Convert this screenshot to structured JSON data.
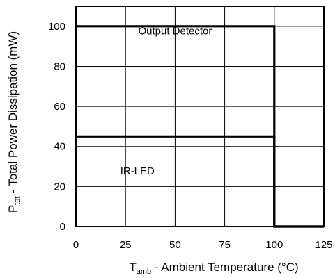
{
  "chart_data": {
    "type": "line",
    "title": "",
    "xlabel": {
      "main": "T",
      "sub": "amb",
      "rest": " - Ambient Temperature (°C)"
    },
    "ylabel": {
      "main": "P",
      "sub": "tot",
      "rest": " - Total Power Dissipation (mW)"
    },
    "xlim": [
      0,
      125
    ],
    "ylim": [
      0,
      110
    ],
    "xticks": [
      0,
      25,
      50,
      75,
      100,
      125
    ],
    "yticks": [
      0,
      20,
      40,
      60,
      80,
      100
    ],
    "grid": true,
    "series": [
      {
        "x": [
          0,
          100,
          100,
          125
        ],
        "y": [
          100,
          100,
          0,
          0
        ]
      },
      {
        "x": [
          0,
          100,
          100,
          125
        ],
        "y": [
          45,
          45,
          0,
          0
        ]
      }
    ],
    "annotations": [
      {
        "text": "Output Detector",
        "x": 50,
        "y": 96
      },
      {
        "text": "IR-LED",
        "x": 31,
        "y": 26
      }
    ]
  }
}
